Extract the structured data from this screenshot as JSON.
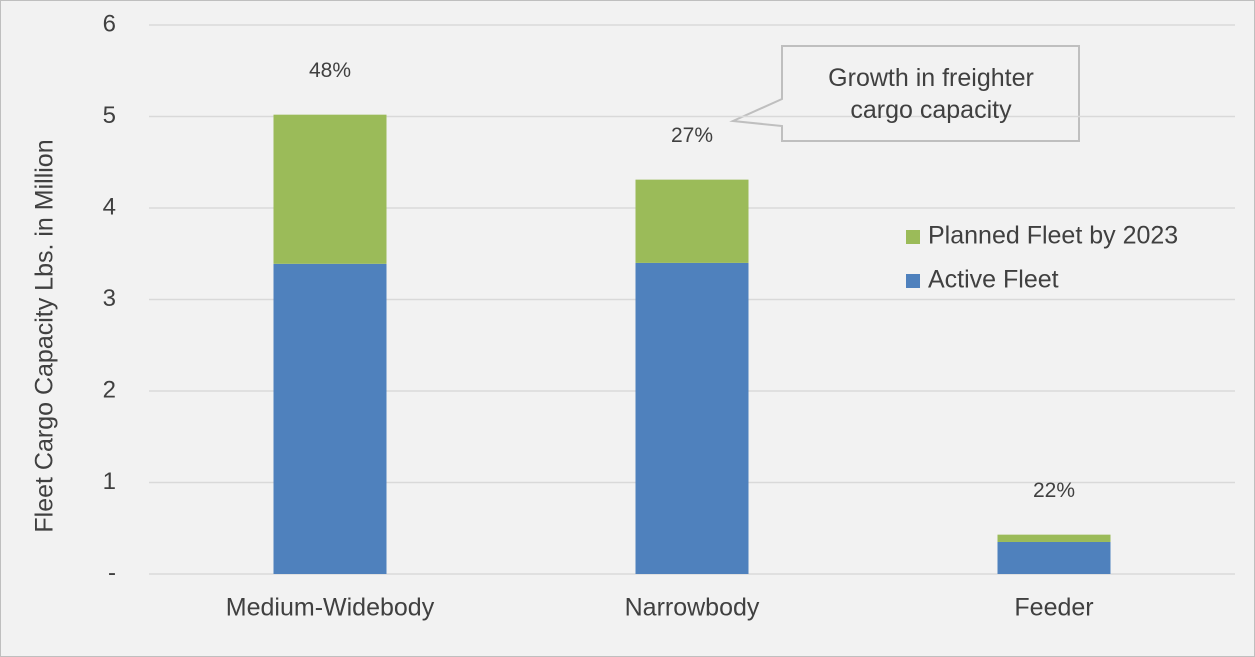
{
  "chart_data": {
    "type": "stacked_bar",
    "y_label": "Fleet Cargo Capacity Lbs. in Million",
    "categories": [
      "Medium-Widebody",
      "Narrowbody",
      "Feeder"
    ],
    "series": [
      {
        "name": "Active Fleet",
        "color": "#4f81bd",
        "values": [
          3.39,
          3.4,
          0.35
        ]
      },
      {
        "name": "Planned Fleet by 2023",
        "color": "#9bbb59",
        "values": [
          1.63,
          0.91,
          0.08
        ]
      }
    ],
    "bar_annotations": [
      "48%",
      "27%",
      "22%"
    ],
    "callout": "Growth in freighter cargo capacity",
    "ylim": [
      0,
      6
    ],
    "yticks": [
      {
        "value": 0,
        "label": "-"
      },
      1,
      2,
      3,
      4,
      5,
      6
    ],
    "grid": true,
    "legend": "right"
  }
}
